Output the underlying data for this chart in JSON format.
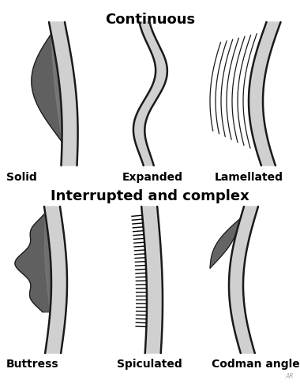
{
  "title_top": "Continuous",
  "title_bottom": "Interrupted and complex",
  "labels": [
    "Solid",
    "Expanded",
    "Lamellated",
    "Buttress",
    "Spiculated",
    "Codman angle"
  ],
  "bg_color": "#ffffff",
  "bone_color": "#d0d0d0",
  "bone_edge_color": "#1a1a1a",
  "dark_fill": "#4a4a4a",
  "title_fontsize": 13,
  "label_fontsize": 10
}
